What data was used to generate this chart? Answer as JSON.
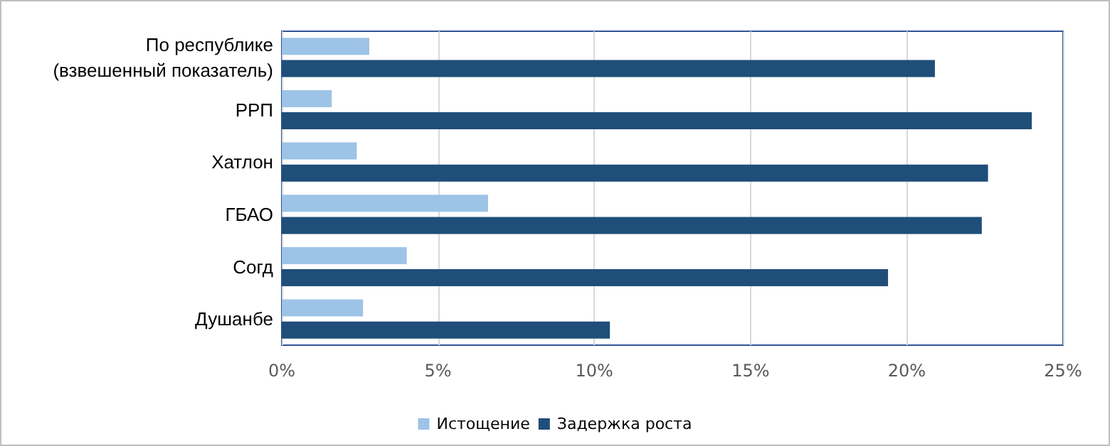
{
  "chart_data": {
    "type": "bar",
    "orientation": "horizontal",
    "categories": [
      "По республике\n(взвешенный показатель)",
      "РРП",
      "Хатлон",
      "ГБАО",
      "Согд",
      "Душанбе"
    ],
    "series": [
      {
        "name": "Истощение",
        "color": "#9dc3e6",
        "values": [
          2.8,
          1.6,
          2.4,
          6.6,
          4.0,
          2.6
        ]
      },
      {
        "name": "Задержка роста",
        "color": "#1f4e79",
        "values": [
          20.9,
          24.0,
          22.6,
          22.4,
          19.4,
          10.5
        ]
      }
    ],
    "xlim": [
      0,
      25
    ],
    "xticks": [
      {
        "value": 0,
        "label": "0%"
      },
      {
        "value": 5,
        "label": "5%"
      },
      {
        "value": 10,
        "label": "10%"
      },
      {
        "value": 15,
        "label": "15%"
      },
      {
        "value": 20,
        "label": "20%"
      },
      {
        "value": 25,
        "label": "25%"
      }
    ],
    "grid": "x",
    "legend": "bottom"
  }
}
